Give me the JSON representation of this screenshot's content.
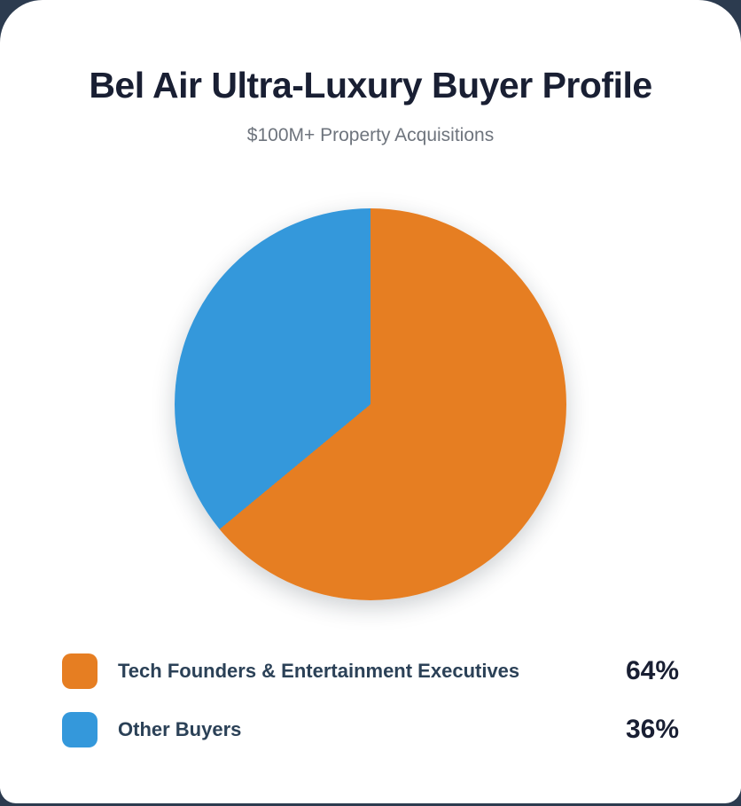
{
  "header": {
    "title": "Bel Air Ultra-Luxury Buyer Profile",
    "subtitle": "$100M+ Property Acquisitions"
  },
  "chart_data": {
    "type": "pie",
    "title": "Bel Air Ultra-Luxury Buyer Profile",
    "subtitle": "$100M+ Property Acquisitions",
    "start_angle_deg": 0,
    "direction": "clockwise",
    "legend_position": "bottom",
    "slices": [
      {
        "label": "Tech Founders & Entertainment Executives",
        "value": 64,
        "display": "64%",
        "color": "#e67e22"
      },
      {
        "label": "Other Buyers",
        "value": 36,
        "display": "36%",
        "color": "#3498db"
      }
    ]
  },
  "colors": {
    "background": "#2c3b4f",
    "card": "#ffffff",
    "title_text": "#191f33",
    "subtitle_text": "#6e747d",
    "label_text": "#2b4157",
    "orange": "#e67e22",
    "blue": "#3498db"
  }
}
